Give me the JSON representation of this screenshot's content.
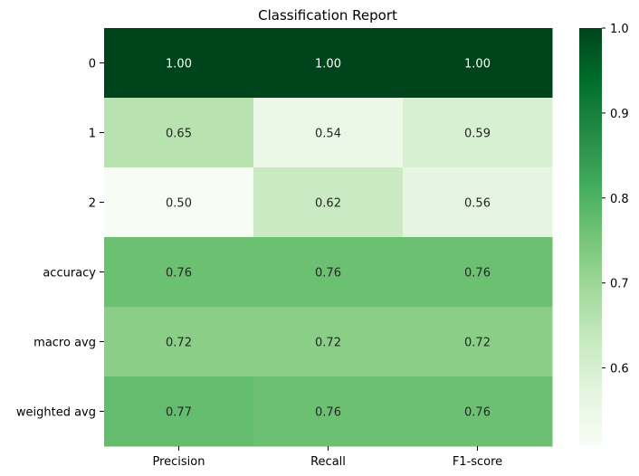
{
  "chart_data": {
    "type": "heatmap",
    "title": "Classification Report",
    "xlabel": "",
    "ylabel": "",
    "columns": [
      "Precision",
      "Recall",
      "F1-score"
    ],
    "rows": [
      "0",
      "1",
      "2",
      "accuracy",
      "macro avg",
      "weighted avg"
    ],
    "values": [
      [
        1.0,
        1.0,
        1.0
      ],
      [
        0.65,
        0.54,
        0.59
      ],
      [
        0.5,
        0.62,
        0.56
      ],
      [
        0.76,
        0.76,
        0.76
      ],
      [
        0.72,
        0.72,
        0.72
      ],
      [
        0.77,
        0.76,
        0.76
      ]
    ],
    "value_format": "2dp",
    "colormap": "Greens",
    "vmin": 0.5,
    "vmax": 1.0,
    "colorbar": {
      "ticks": [
        0.6,
        0.7,
        0.8,
        0.9,
        1.0
      ],
      "tick_labels": [
        "0.6",
        "0.7",
        "0.8",
        "0.9",
        "1.0"
      ]
    },
    "grid": false,
    "legend": "colorbar-right"
  }
}
